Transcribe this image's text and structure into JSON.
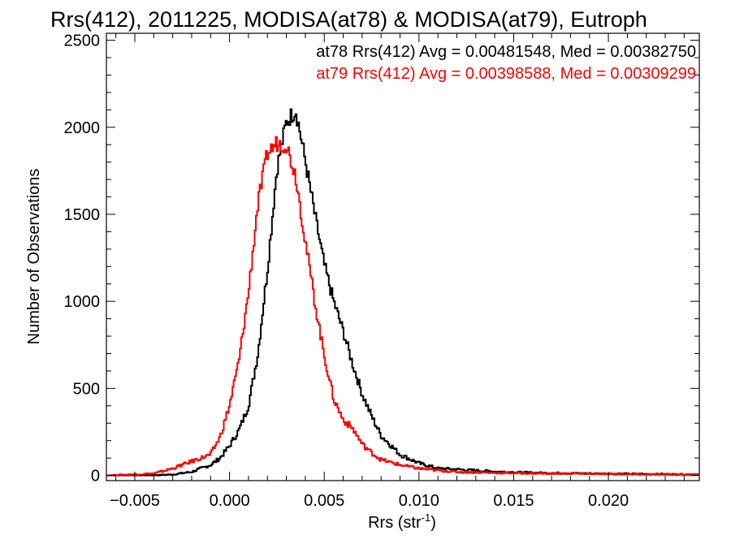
{
  "chart_data": {
    "type": "line",
    "title": "Rrs(412), 2011225, MODISA(at78) & MODISA(at79), Eutroph",
    "xlabel": "Rrs (str",
    "xlabel_sup": "-1",
    "xlabel_close": ")",
    "ylabel": "Number of Observations",
    "xlim": [
      -0.0065,
      0.0248
    ],
    "ylim": [
      -30,
      2540
    ],
    "x_ticks": [
      -0.005,
      0.0,
      0.005,
      0.01,
      0.015,
      0.02
    ],
    "x_tick_labels": [
      "−0.005",
      "0.000",
      "0.005",
      "0.010",
      "0.015",
      "0.020"
    ],
    "y_ticks": [
      0,
      500,
      1000,
      1500,
      2000,
      2500
    ],
    "y_tick_labels": [
      "0",
      "500",
      "1000",
      "1500",
      "2000",
      "2500"
    ],
    "grid": false,
    "legend_position": "top-right",
    "series": [
      {
        "name": "at78 Rrs(412) Avg = 0.00481548, Med = 0.00382750",
        "color": "#000000",
        "x": [
          -0.0065,
          -0.004,
          -0.003,
          -0.002,
          -0.001,
          -0.0005,
          0.0,
          0.0005,
          0.001,
          0.0015,
          0.002,
          0.0025,
          0.003,
          0.0035,
          0.004,
          0.0045,
          0.005,
          0.0055,
          0.006,
          0.0065,
          0.007,
          0.0075,
          0.008,
          0.009,
          0.01,
          0.011,
          0.012,
          0.014,
          0.016,
          0.018,
          0.02,
          0.022,
          0.0248
        ],
        "y": [
          0,
          1,
          5,
          20,
          60,
          100,
          170,
          260,
          400,
          700,
          1180,
          1760,
          2030,
          2100,
          1810,
          1500,
          1210,
          1000,
          830,
          640,
          470,
          340,
          230,
          120,
          70,
          40,
          35,
          22,
          15,
          12,
          10,
          8,
          5
        ]
      },
      {
        "name": "at79 Rrs(412) Avg = 0.00398588, Med = 0.00309299",
        "color": "#ff0000",
        "x": [
          -0.0065,
          -0.004,
          -0.003,
          -0.002,
          -0.001,
          -0.0005,
          0.0,
          0.0005,
          0.001,
          0.0015,
          0.002,
          0.0025,
          0.003,
          0.0035,
          0.004,
          0.0045,
          0.005,
          0.0055,
          0.006,
          0.0065,
          0.007,
          0.0075,
          0.008,
          0.009,
          0.01,
          0.011,
          0.012,
          0.014,
          0.016,
          0.018,
          0.02,
          0.022,
          0.0248
        ],
        "y": [
          0,
          10,
          40,
          80,
          120,
          220,
          400,
          660,
          1050,
          1560,
          1850,
          1910,
          1900,
          1720,
          1350,
          1000,
          690,
          440,
          320,
          270,
          180,
          130,
          90,
          60,
          40,
          28,
          20,
          15,
          12,
          10,
          8,
          6,
          4
        ]
      }
    ]
  }
}
